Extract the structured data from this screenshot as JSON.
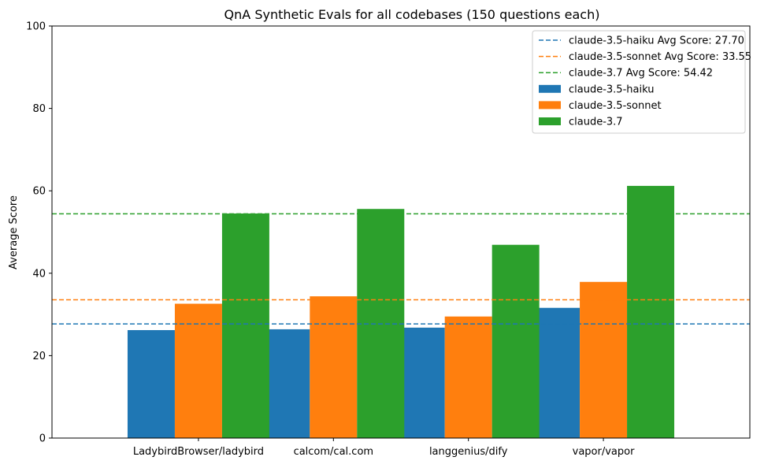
{
  "chart_data": {
    "type": "bar",
    "title": "QnA Synthetic Evals for all codebases (150 questions each)",
    "xlabel": "",
    "ylabel": "Average Score",
    "ylim": [
      0,
      100
    ],
    "yticks": [
      0,
      20,
      40,
      60,
      80,
      100
    ],
    "categories": [
      "LadybirdBrowser/ladybird",
      "calcom/cal.com",
      "langgenius/dify",
      "vapor/vapor"
    ],
    "series": [
      {
        "name": "claude-3.5-haiku",
        "color": "#1f77b4",
        "values": [
          26.2,
          26.4,
          26.8,
          31.6
        ]
      },
      {
        "name": "claude-3.5-sonnet",
        "color": "#ff7f0e",
        "values": [
          32.6,
          34.4,
          29.5,
          37.9
        ]
      },
      {
        "name": "claude-3.7",
        "color": "#2ca02c",
        "values": [
          54.5,
          55.6,
          46.9,
          61.2
        ]
      }
    ],
    "averages": [
      {
        "label": "claude-3.5-haiku Avg Score: 27.70",
        "value": 27.7,
        "color": "#1f77b4"
      },
      {
        "label": "claude-3.5-sonnet Avg Score: 33.55",
        "value": 33.55,
        "color": "#ff7f0e"
      },
      {
        "label": "claude-3.7 Avg Score: 54.42",
        "value": 54.42,
        "color": "#2ca02c"
      }
    ],
    "grid": false,
    "legend_position": "top-right"
  }
}
